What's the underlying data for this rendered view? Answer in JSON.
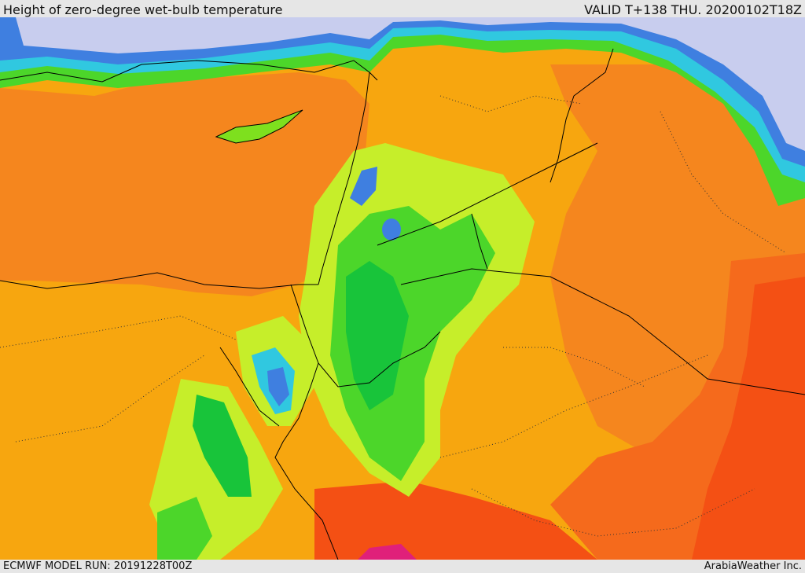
{
  "header": {
    "title": "Height of zero-degree wet-bulb temperature",
    "valid": "VALID T+138 THU. 20200102T18Z"
  },
  "footer": {
    "model_run": "ECMWF MODEL RUN: 20191228T00Z",
    "credit": "ArabiaWeather Inc."
  },
  "palette": {
    "ocean_cold": "#c8cdee",
    "purple": "#6a5acd",
    "blue": "#3f7fe0",
    "cyan": "#30c8e0",
    "green_dark": "#18c43a",
    "green": "#4cd62a",
    "green_light": "#7ee01e",
    "yellow_green": "#c6ee2a",
    "yellow": "#e8f03a",
    "orange_light": "#f7a60f",
    "orange": "#f5861e",
    "orange_red": "#f56a1c",
    "red": "#f45014",
    "magenta": "#e0207a"
  }
}
